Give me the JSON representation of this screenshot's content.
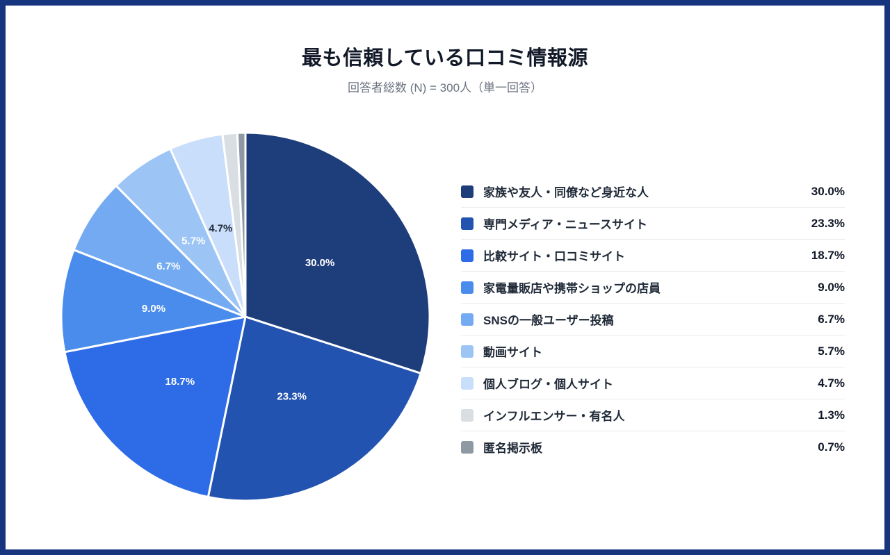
{
  "page": {
    "border_color": "#17357F",
    "background_color": "#ffffff"
  },
  "chart_data": {
    "type": "pie",
    "title": "最も信頼している口コミ情報源",
    "subtitle": "回答者総数 (N) = 300人（単一回答）",
    "n_total": 300,
    "unit": "%",
    "start_angle_deg": 0,
    "direction": "clockwise",
    "legend_position": "right",
    "categories": [
      "家族や友人・同僚など身近な人",
      "専門メディア・ニュースサイト",
      "比較サイト・口コミサイト",
      "家電量販店や携帯ショップの店員",
      "SNSの一般ユーザー投稿",
      "動画サイト",
      "個人ブログ・個人サイト",
      "インフルエンサー・有名人",
      "匿名掲示板"
    ],
    "values": [
      30.0,
      23.3,
      18.7,
      9.0,
      6.7,
      5.7,
      4.7,
      1.3,
      0.7
    ],
    "value_labels": [
      "30.0%",
      "23.3%",
      "18.7%",
      "9.0%",
      "6.7%",
      "5.7%",
      "4.7%",
      "1.3%",
      "0.7%"
    ],
    "colors": [
      "#1E3D7B",
      "#2353B0",
      "#2E6BE6",
      "#4A8CEC",
      "#74AAF1",
      "#9CC5F6",
      "#C9DEFA",
      "#D9DEE3",
      "#8E99A4"
    ],
    "slice_label_colors": [
      "#ffffff",
      "#ffffff",
      "#ffffff",
      "#ffffff",
      "#ffffff",
      "#ffffff",
      "#1f2937",
      "#ffffff",
      "#ffffff"
    ],
    "slice_label_visible": [
      true,
      true,
      true,
      true,
      true,
      true,
      true,
      false,
      false
    ]
  }
}
